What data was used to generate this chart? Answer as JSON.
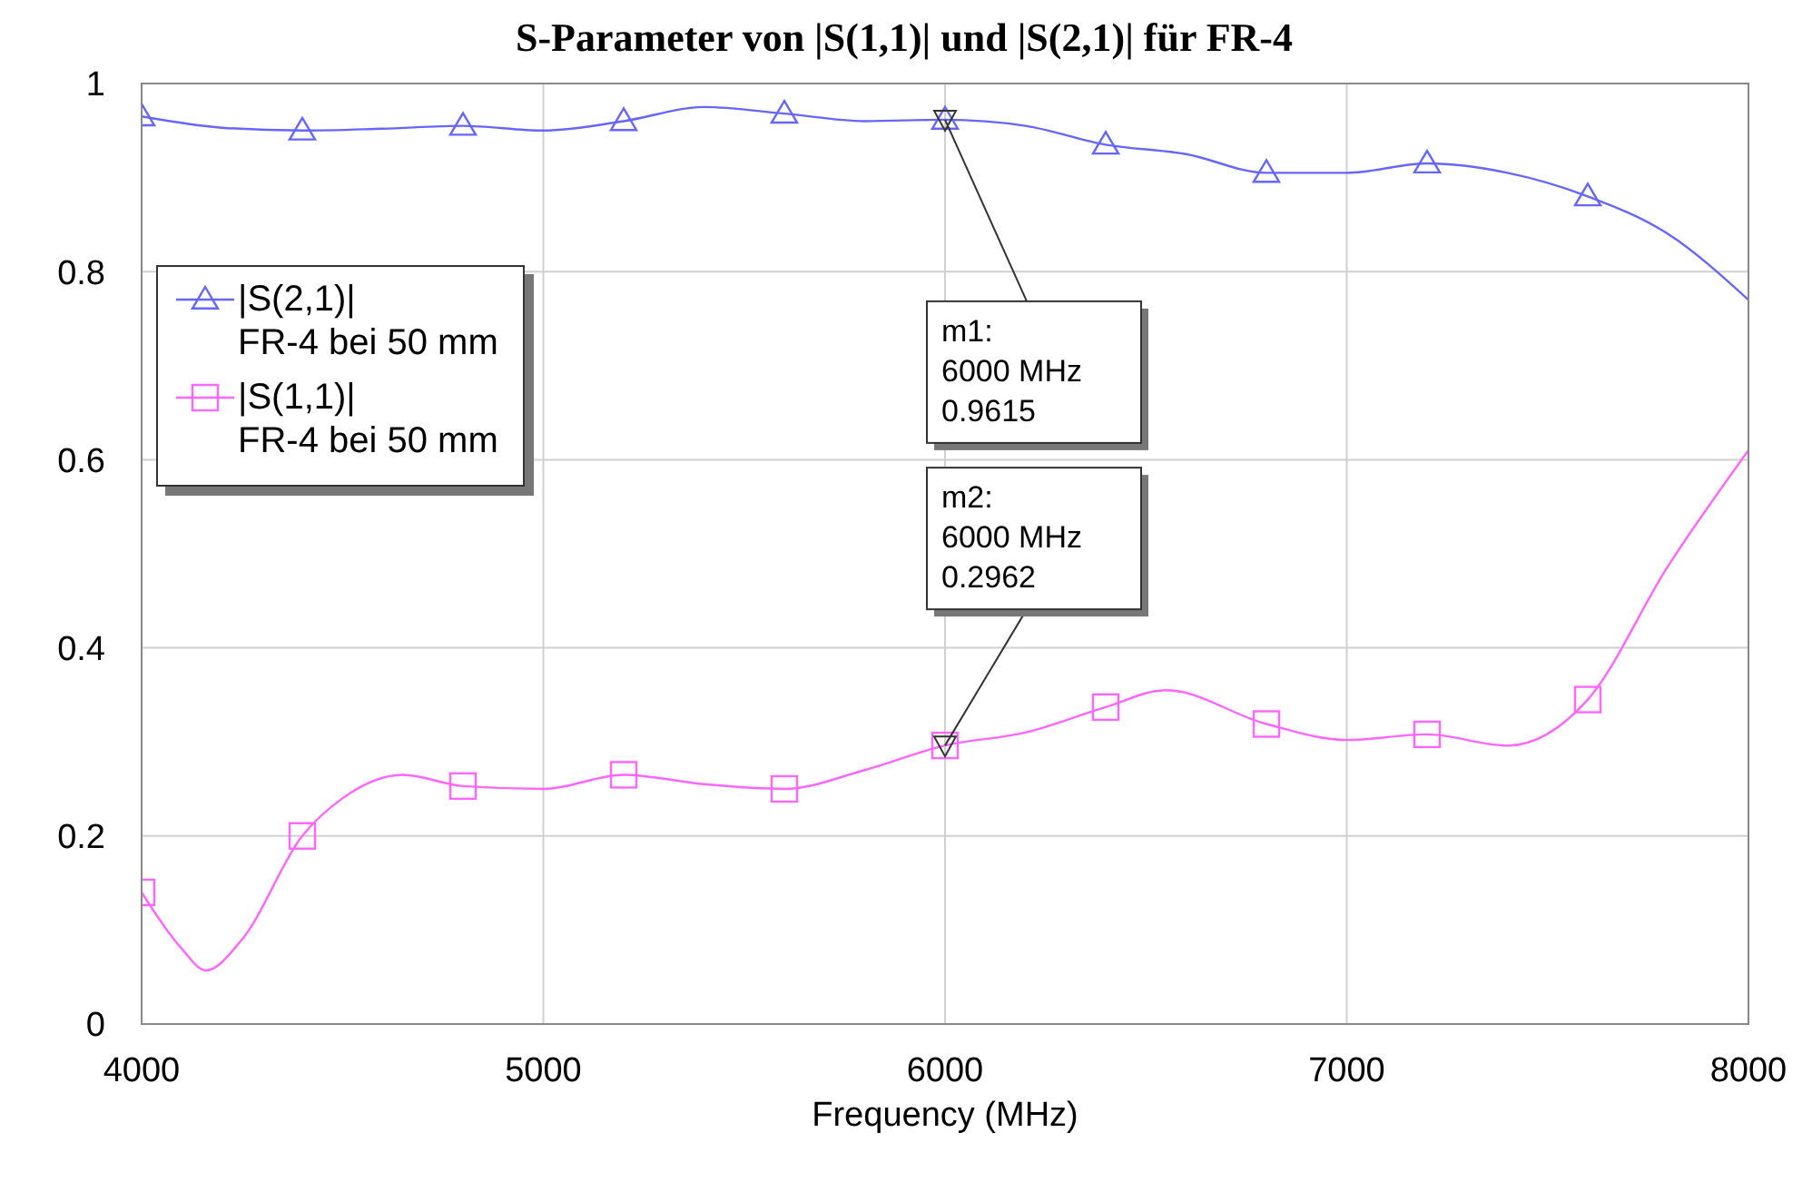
{
  "chart_data": {
    "type": "line",
    "title": "S-Parameter von |S(1,1)| und |S(2,1)| für FR-4",
    "xlabel": "Frequency (MHz)",
    "xlim": [
      4000,
      8000
    ],
    "xticks": [
      4000,
      5000,
      6000,
      7000,
      8000
    ],
    "ylim": [
      0,
      1
    ],
    "yticks": [
      0,
      0.2,
      0.4,
      0.6,
      0.8,
      1
    ],
    "grid": true,
    "legend": "top left",
    "line_style": "solid",
    "series": [
      {
        "color": "#6666ff",
        "marker": "none",
        "x": [
          4000,
          4200,
          4400,
          4600,
          4800,
          5000,
          5200,
          5400,
          5600,
          5800,
          6000,
          6200,
          6400,
          6600,
          6800,
          7000,
          7200,
          7400,
          7600,
          7800,
          8000
        ],
        "values": [
          0.965,
          0.953,
          0.95,
          0.952,
          0.955,
          0.95,
          0.96,
          0.975,
          0.968,
          0.96,
          0.9615,
          0.955,
          0.935,
          0.925,
          0.905,
          0.905,
          0.915,
          0.905,
          0.88,
          0.84,
          0.77
        ]
      },
      {
        "type": "scatter",
        "name": "|S(2,1)|\nFR-4 bei 50 mm",
        "color": "#6666ff",
        "marker": "triangle",
        "x": [
          4000,
          4400,
          4800,
          5200,
          5600,
          6000,
          6400,
          6800,
          7200,
          7600
        ],
        "values": [
          0.965,
          0.95,
          0.955,
          0.96,
          0.968,
          0.9615,
          0.935,
          0.905,
          0.915,
          0.88
        ]
      },
      {
        "color": "#ff66ff",
        "marker": "none",
        "x": [
          4000,
          4100,
          4160,
          4250,
          4400,
          4500,
          4650,
          4800,
          5000,
          5200,
          5400,
          5600,
          5800,
          6000,
          6200,
          6400,
          6550,
          6800,
          7000,
          7200,
          7400,
          7600,
          7800,
          8000
        ],
        "values": [
          0.14,
          0.08,
          0.057,
          0.09,
          0.2,
          0.24,
          0.265,
          0.253,
          0.25,
          0.265,
          0.255,
          0.25,
          0.27,
          0.2962,
          0.31,
          0.337,
          0.355,
          0.319,
          0.302,
          0.308,
          0.296,
          0.345,
          0.487,
          0.61
        ]
      },
      {
        "type": "scatter",
        "name": "|S(1,1)|\nFR-4 bei 50 mm",
        "color": "#ff66ff",
        "marker": "square",
        "x": [
          4000,
          4400,
          4800,
          5200,
          5600,
          6000,
          6400,
          6800,
          7200,
          7600
        ],
        "values": [
          0.14,
          0.2,
          0.253,
          0.265,
          0.25,
          0.2962,
          0.337,
          0.319,
          0.308,
          0.345
        ]
      }
    ],
    "annotations": [
      {
        "text": "m1:\n6000 MHz\n0.9615",
        "x": 6000,
        "y": 0.9615
      },
      {
        "text": "m2:\n6000 MHz\n0.2962",
        "x": 6000,
        "y": 0.2962
      }
    ]
  }
}
